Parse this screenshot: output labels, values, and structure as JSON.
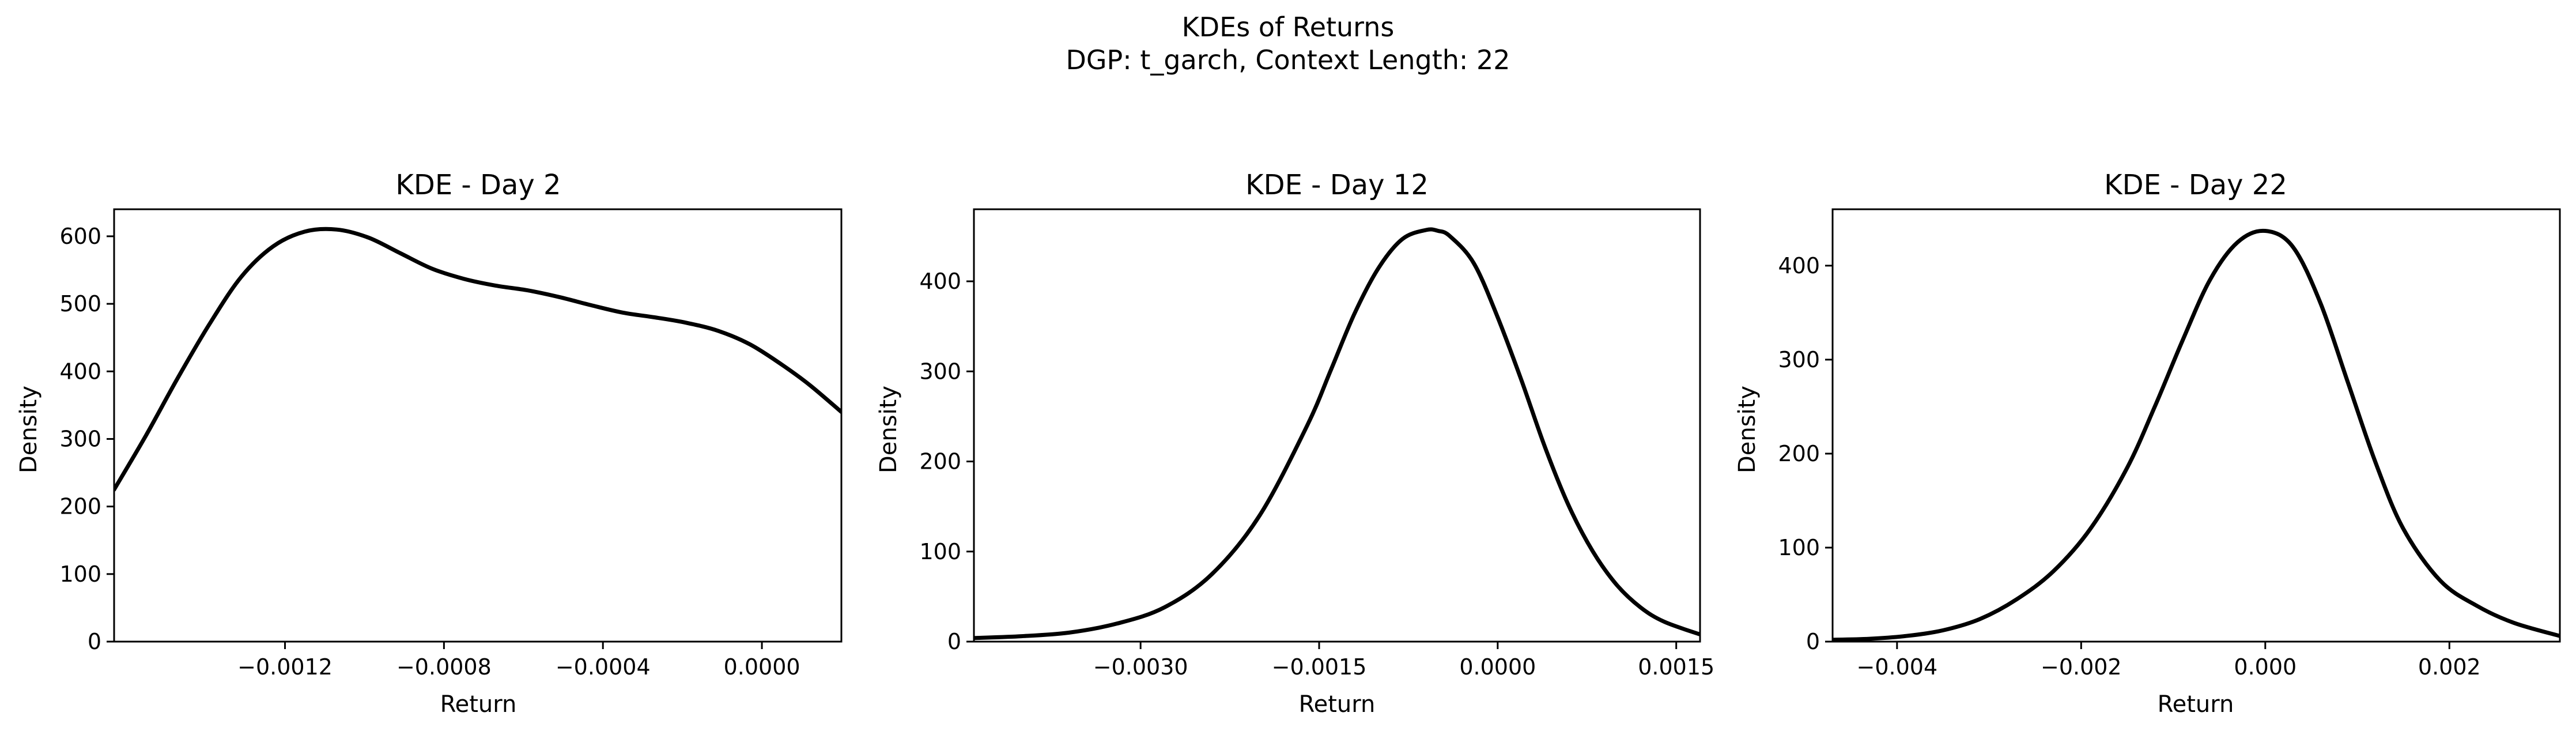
{
  "figure": {
    "title_line1": "KDEs of Returns",
    "title_line2": "DGP: t_garch, Context Length: 22"
  },
  "chart_data": [
    {
      "type": "line",
      "title": "KDE - Day 2",
      "xlabel": "Return",
      "ylabel": "Density",
      "xlim": [
        -0.00163,
        0.0002
      ],
      "ylim": [
        0,
        640
      ],
      "xticks": [
        -0.0012,
        -0.0008,
        -0.0004,
        0.0
      ],
      "xtick_labels": [
        "−0.0012",
        "−0.0008",
        "−0.0004",
        "0.0000"
      ],
      "yticks": [
        0,
        100,
        200,
        300,
        400,
        500,
        600
      ],
      "ytick_labels": [
        "0",
        "100",
        "200",
        "300",
        "400",
        "500",
        "600"
      ],
      "line_color": "#000000",
      "grid": false,
      "series": [
        {
          "x": [
            -0.00163,
            -0.00155,
            -0.00147,
            -0.00139,
            -0.00131,
            -0.00123,
            -0.00115,
            -0.00107,
            -0.00099,
            -0.00091,
            -0.00083,
            -0.00075,
            -0.00067,
            -0.00059,
            -0.00051,
            -0.00043,
            -0.00035,
            -0.00027,
            -0.00019,
            -0.00011,
            -3e-05,
            5e-05,
            0.00012,
            0.0002
          ],
          "y": [
            225,
            305,
            390,
            470,
            540,
            585,
            607,
            610,
            598,
            575,
            552,
            537,
            527,
            520,
            510,
            498,
            487,
            480,
            472,
            460,
            440,
            410,
            380,
            340
          ]
        }
      ]
    },
    {
      "type": "line",
      "title": "KDE - Day 12",
      "xlabel": "Return",
      "ylabel": "Density",
      "xlim": [
        -0.0044,
        0.0017
      ],
      "ylim": [
        0,
        480
      ],
      "xticks": [
        -0.003,
        -0.0015,
        0.0,
        0.0015
      ],
      "xtick_labels": [
        "−0.0030",
        "−0.0015",
        "0.0000",
        "0.0015"
      ],
      "yticks": [
        0,
        100,
        200,
        300,
        400
      ],
      "ytick_labels": [
        "0",
        "100",
        "200",
        "300",
        "400"
      ],
      "line_color": "#000000",
      "grid": false,
      "series": [
        {
          "x": [
            -0.0044,
            -0.004,
            -0.0036,
            -0.0032,
            -0.0028,
            -0.0024,
            -0.002,
            -0.0016,
            -0.0014,
            -0.0012,
            -0.001,
            -0.0008,
            -0.0006,
            -0.0005,
            -0.0004,
            -0.0002,
            0.0,
            0.0002,
            0.0004,
            0.0006,
            0.0008,
            0.001,
            0.0012,
            0.0014,
            0.0017
          ],
          "y": [
            4,
            6,
            10,
            20,
            38,
            75,
            140,
            240,
            302,
            365,
            415,
            447,
            457,
            456,
            450,
            420,
            360,
            290,
            215,
            150,
            100,
            63,
            38,
            22,
            8
          ]
        }
      ]
    },
    {
      "type": "line",
      "title": "KDE - Day 22",
      "xlabel": "Return",
      "ylabel": "Density",
      "xlim": [
        -0.0047,
        0.0032
      ],
      "ylim": [
        0,
        460
      ],
      "xticks": [
        -0.004,
        -0.002,
        0.0,
        0.002
      ],
      "xtick_labels": [
        "−0.004",
        "−0.002",
        "0.000",
        "0.002"
      ],
      "yticks": [
        0,
        100,
        200,
        300,
        400
      ],
      "ytick_labels": [
        "0",
        "100",
        "200",
        "300",
        "400"
      ],
      "line_color": "#000000",
      "grid": false,
      "series": [
        {
          "x": [
            -0.0047,
            -0.0043,
            -0.0039,
            -0.0035,
            -0.0031,
            -0.0027,
            -0.0023,
            -0.0019,
            -0.0015,
            -0.0012,
            -0.0009,
            -0.0006,
            -0.0003,
            0.0,
            0.0003,
            0.0006,
            0.0009,
            0.0012,
            0.0015,
            0.0019,
            0.0023,
            0.0027,
            0.0032
          ],
          "y": [
            2,
            3,
            6,
            12,
            24,
            45,
            75,
            120,
            185,
            250,
            320,
            385,
            425,
            437,
            420,
            360,
            275,
            190,
            120,
            65,
            38,
            20,
            6
          ]
        }
      ]
    }
  ]
}
